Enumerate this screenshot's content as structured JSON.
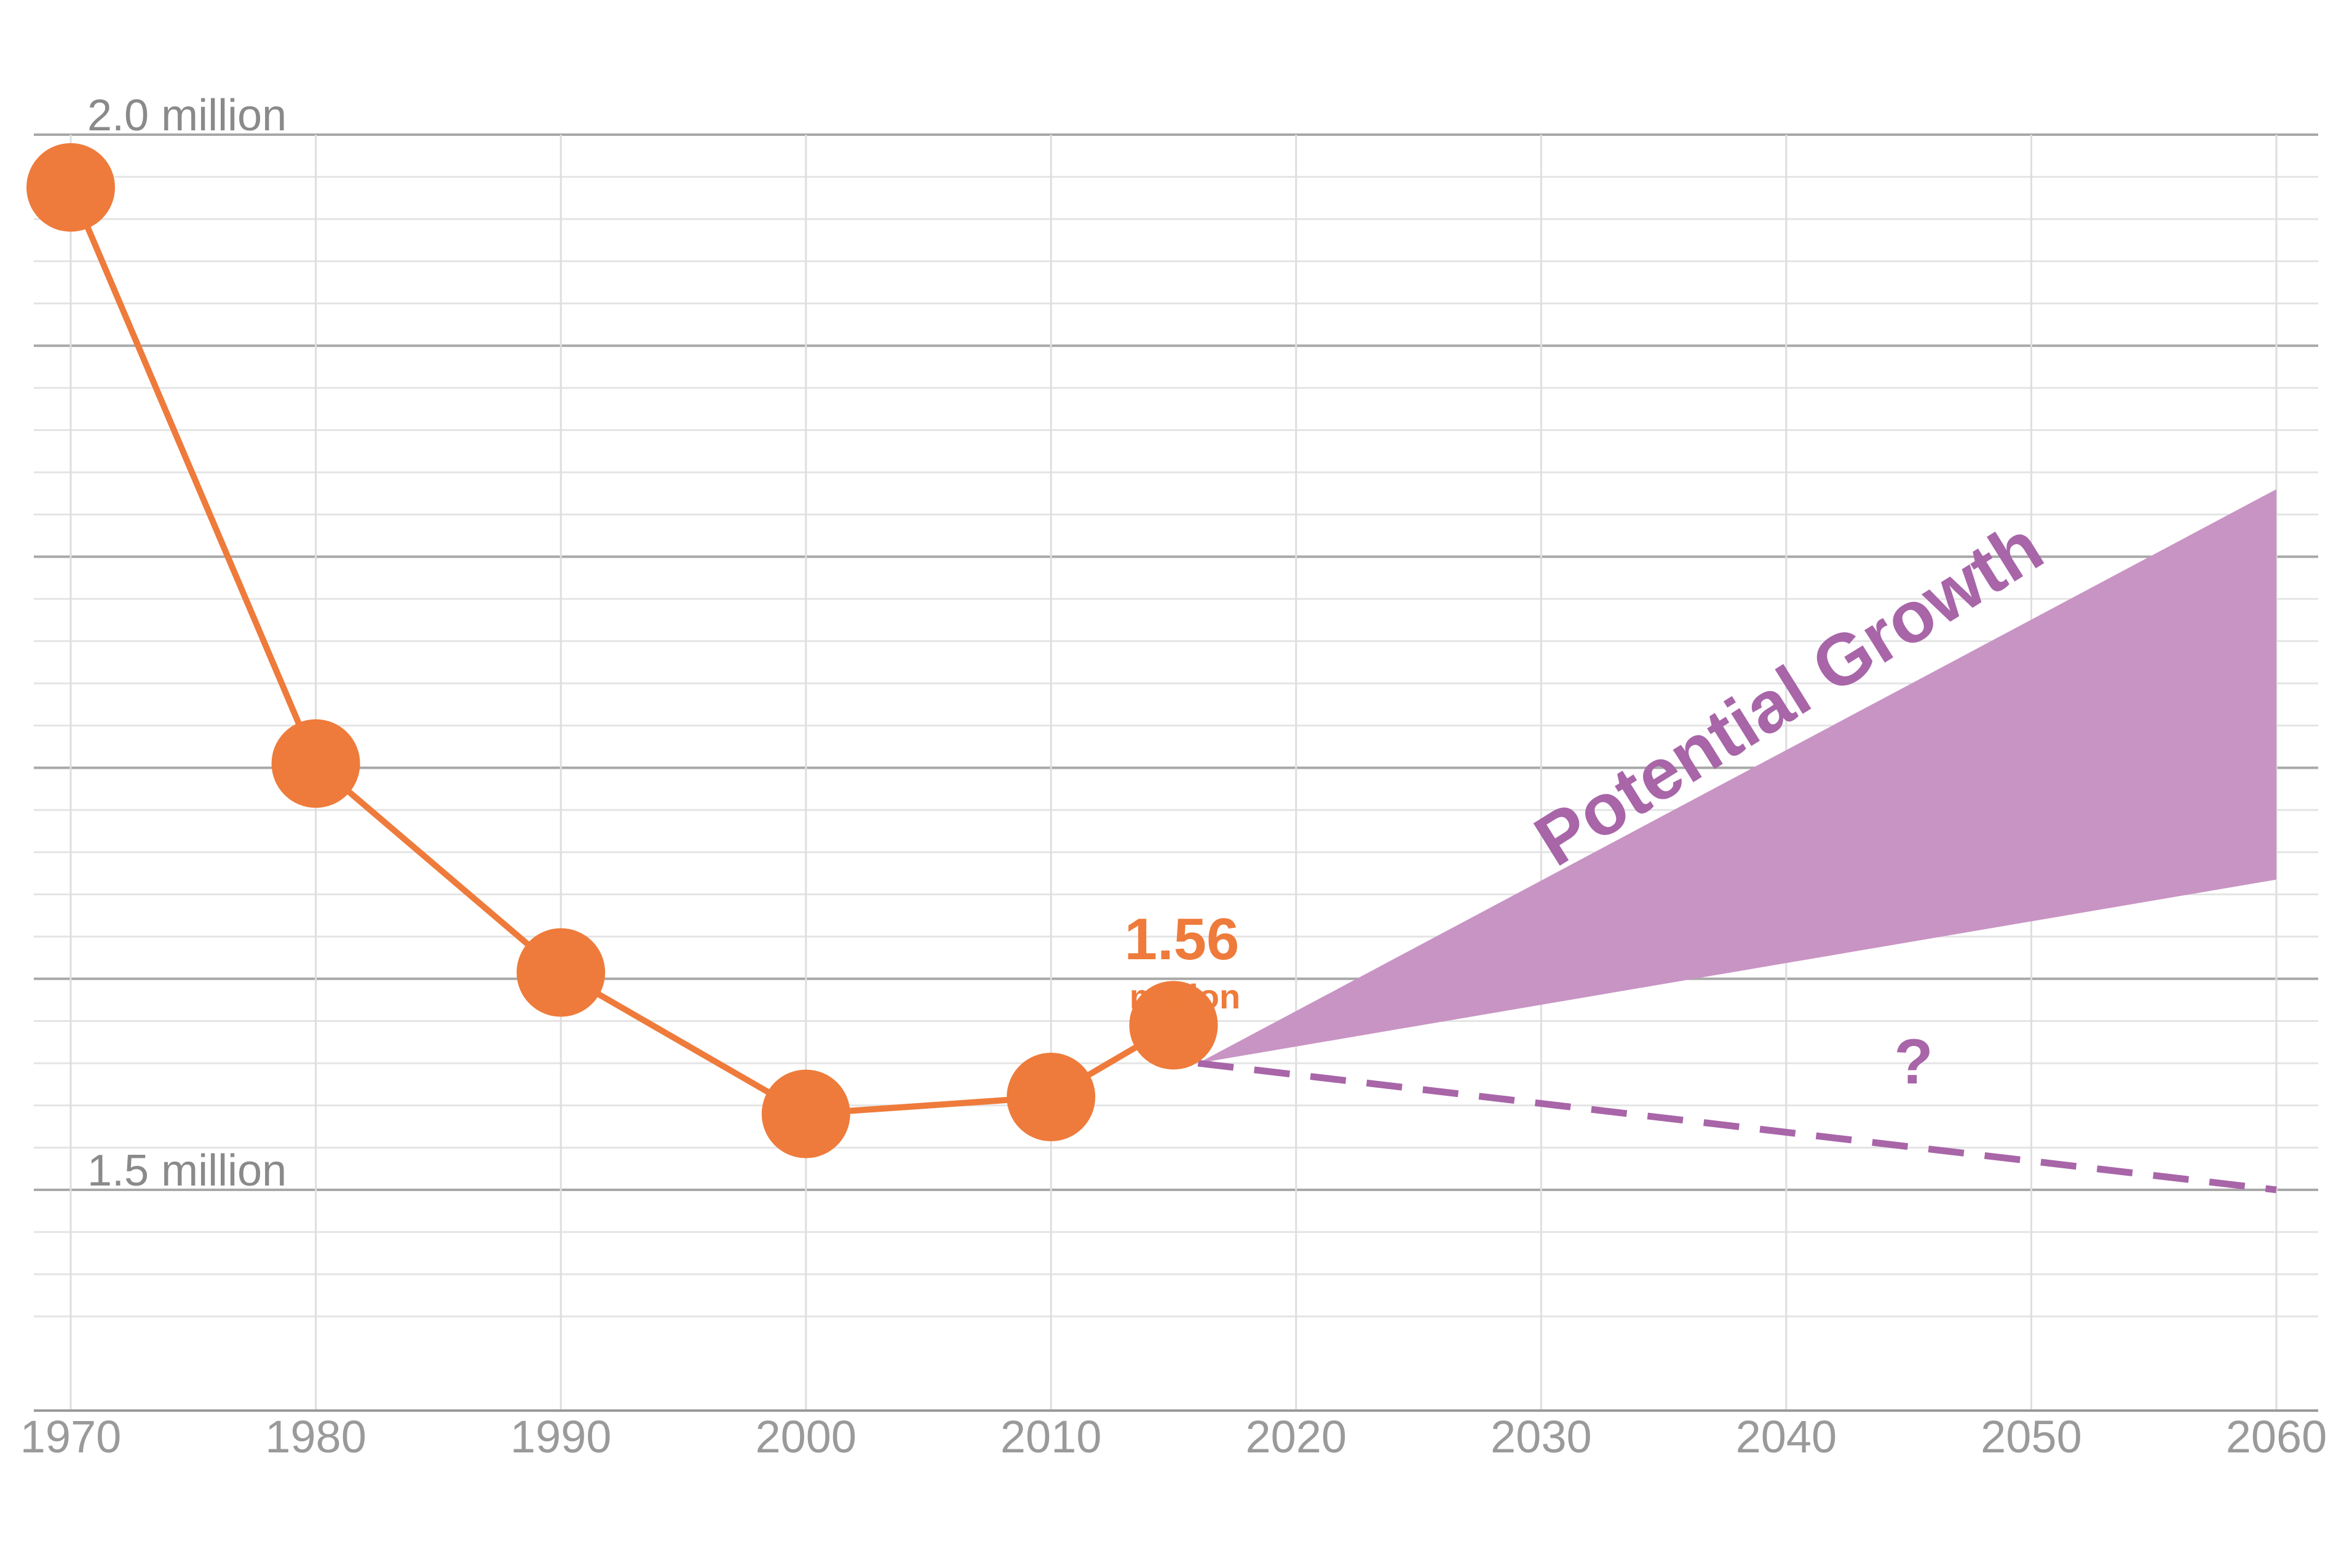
{
  "chart_data": {
    "type": "line",
    "x_ticks": [
      1970,
      1980,
      1990,
      2000,
      2010,
      2020,
      2030,
      2040,
      2050,
      2060
    ],
    "y_labels": [
      {
        "value": 2.0,
        "text": "2.0 million"
      },
      {
        "value": 1.5,
        "text": "1.5 million"
      }
    ],
    "ylim": [
      1.44,
      2.0
    ],
    "xlim": [
      1970,
      2060
    ],
    "series": [
      {
        "kind": "historical",
        "color": "#ee7b3b",
        "points": [
          {
            "x": 1970,
            "y": 1.975
          },
          {
            "x": 1980,
            "y": 1.702
          },
          {
            "x": 1990,
            "y": 1.603
          },
          {
            "x": 2000,
            "y": 1.536
          },
          {
            "x": 2010,
            "y": 1.544
          },
          {
            "x": 2015,
            "y": 1.578
          }
        ]
      },
      {
        "kind": "projection-low",
        "color": "#a865a8",
        "style": "dashed",
        "points": [
          {
            "x": 2016,
            "y": 1.56
          },
          {
            "x": 2060,
            "y": 1.5
          }
        ]
      }
    ],
    "band": {
      "color": "#c894c4",
      "x_start": 2016,
      "x_end": 2060,
      "start": 1.56,
      "upper_end": 1.832,
      "lower_end": 1.647
    },
    "annotations": {
      "current_value": "1.56",
      "current_unit": "million",
      "band_label": "Potential Growth",
      "uncertain_label": "?"
    },
    "grid": true
  }
}
